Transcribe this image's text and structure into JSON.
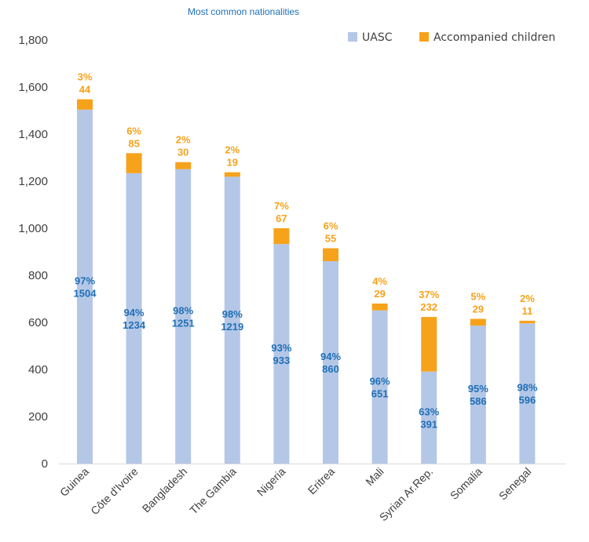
{
  "chart_data": {
    "type": "bar",
    "stacked": true,
    "title": "",
    "subtitle": "Most common nationalities",
    "xlabel": "",
    "ylabel": "",
    "ylim": [
      0,
      1800
    ],
    "yticks": [
      0,
      200,
      400,
      600,
      800,
      1000,
      1200,
      1400,
      1600,
      1800
    ],
    "ytick_labels": [
      "0",
      "200",
      "400",
      "600",
      "800",
      "1,000",
      "1,200",
      "1,400",
      "1,600",
      "1,800"
    ],
    "grid": false,
    "legend_position": "top-right",
    "categories": [
      "Guinea",
      "Côte d'Ivoire",
      "Bangladesh",
      "The Gambia",
      "Nigeria",
      "Eritrea",
      "Mali",
      "Syrian Ar.Rep.",
      "Somalia",
      "Senegal"
    ],
    "series": [
      {
        "name": "UASC",
        "color": "#b4c7e7",
        "label_color": "#1f6fb5",
        "values": [
          1504,
          1234,
          1251,
          1219,
          933,
          860,
          651,
          391,
          586,
          596
        ],
        "percent_labels": [
          "97%",
          "94%",
          "98%",
          "98%",
          "93%",
          "94%",
          "96%",
          "63%",
          "95%",
          "98%"
        ],
        "value_labels": [
          "1504",
          "1234",
          "1251",
          "1219",
          "933",
          "860",
          "651",
          "391",
          "586",
          "596"
        ]
      },
      {
        "name": "Accompanied children",
        "color": "#f7a21b",
        "label_color": "#f7a21b",
        "values": [
          44,
          85,
          30,
          19,
          67,
          55,
          29,
          232,
          29,
          11
        ],
        "percent_labels": [
          "3%",
          "6%",
          "2%",
          "2%",
          "7%",
          "6%",
          "4%",
          "37%",
          "5%",
          "2%"
        ],
        "value_labels": [
          "44",
          "85",
          "30",
          "19",
          "67",
          "55",
          "29",
          "232",
          "29",
          "11"
        ]
      }
    ]
  }
}
